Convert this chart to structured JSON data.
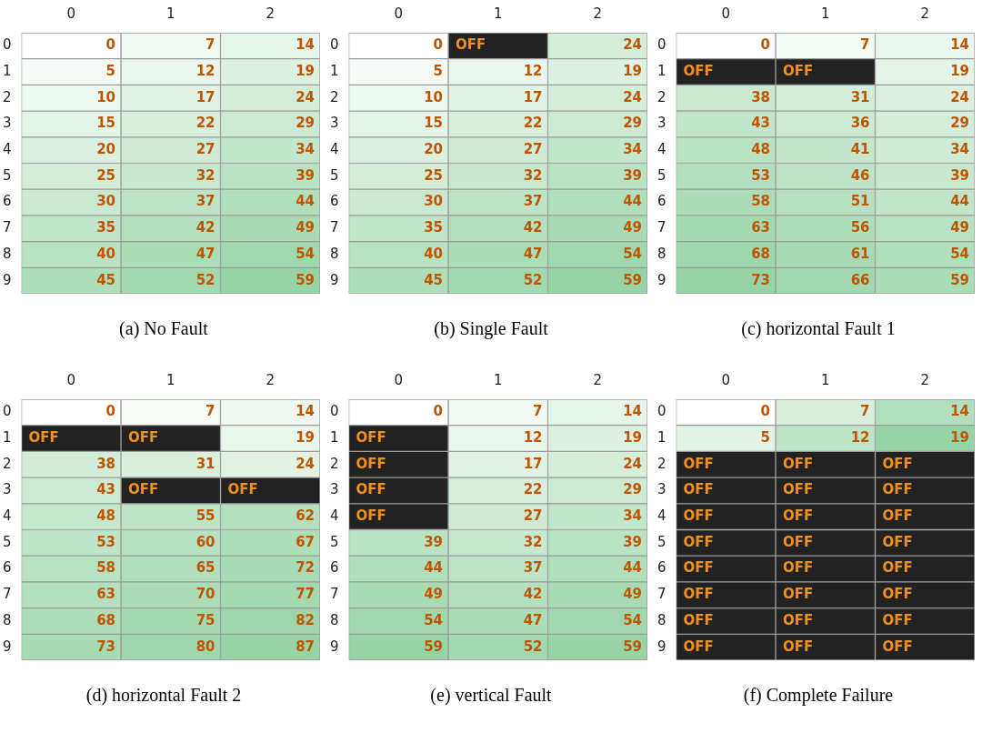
{
  "chart_data": [
    {
      "type": "heatmap",
      "data_labels": true,
      "title": "(a) No Fault",
      "categories": [
        "0",
        "1",
        "2"
      ],
      "y_categories": [
        "0",
        "1",
        "2",
        "3",
        "4",
        "5",
        "6",
        "7",
        "8",
        "9"
      ],
      "cells": [
        [
          0,
          7,
          14
        ],
        [
          5,
          12,
          19
        ],
        [
          10,
          17,
          24
        ],
        [
          15,
          22,
          29
        ],
        [
          20,
          27,
          34
        ],
        [
          25,
          32,
          39
        ],
        [
          30,
          37,
          44
        ],
        [
          35,
          42,
          49
        ],
        [
          40,
          47,
          54
        ],
        [
          45,
          52,
          59
        ]
      ]
    },
    {
      "type": "heatmap",
      "data_labels": true,
      "title": "(b) Single Fault",
      "categories": [
        "0",
        "1",
        "2"
      ],
      "y_categories": [
        "0",
        "1",
        "2",
        "3",
        "4",
        "5",
        "6",
        "7",
        "8",
        "9"
      ],
      "cells": [
        [
          0,
          null,
          24
        ],
        [
          5,
          12,
          19
        ],
        [
          10,
          17,
          24
        ],
        [
          15,
          22,
          29
        ],
        [
          20,
          27,
          34
        ],
        [
          25,
          32,
          39
        ],
        [
          30,
          37,
          44
        ],
        [
          35,
          42,
          49
        ],
        [
          40,
          47,
          54
        ],
        [
          45,
          52,
          59
        ]
      ],
      "cell_labels": [
        [
          "0",
          "OFF",
          "24"
        ],
        [
          "5",
          "12",
          "19"
        ],
        [
          "10",
          "17",
          "24"
        ],
        [
          "15",
          "22",
          "29"
        ],
        [
          "20",
          "27",
          "34"
        ],
        [
          "25",
          "32",
          "39"
        ],
        [
          "30",
          "37",
          "44"
        ],
        [
          "35",
          "42",
          "49"
        ],
        [
          "40",
          "47",
          "54"
        ],
        [
          "45",
          "52",
          "59"
        ]
      ]
    },
    {
      "type": "heatmap",
      "data_labels": true,
      "title": "(c) horizontal Fault 1",
      "categories": [
        "0",
        "1",
        "2"
      ],
      "y_categories": [
        "0",
        "1",
        "2",
        "3",
        "4",
        "5",
        "6",
        "7",
        "8",
        "9"
      ],
      "cells": [
        [
          0,
          7,
          14
        ],
        [
          null,
          null,
          19
        ],
        [
          38,
          31,
          24
        ],
        [
          43,
          36,
          29
        ],
        [
          48,
          41,
          34
        ],
        [
          53,
          46,
          39
        ],
        [
          58,
          51,
          44
        ],
        [
          63,
          56,
          49
        ],
        [
          68,
          61,
          54
        ],
        [
          73,
          66,
          59
        ]
      ],
      "cell_labels": [
        [
          "0",
          "7",
          "14"
        ],
        [
          "OFF",
          "OFF",
          "19"
        ],
        [
          "38",
          "31",
          "24"
        ],
        [
          "43",
          "36",
          "29"
        ],
        [
          "48",
          "41",
          "34"
        ],
        [
          "53",
          "46",
          "39"
        ],
        [
          "58",
          "51",
          "44"
        ],
        [
          "63",
          "56",
          "49"
        ],
        [
          "68",
          "61",
          "54"
        ],
        [
          "73",
          "66",
          "59"
        ]
      ]
    },
    {
      "type": "heatmap",
      "data_labels": true,
      "title": "(d) horizontal Fault 2",
      "categories": [
        "0",
        "1",
        "2"
      ],
      "y_categories": [
        "0",
        "1",
        "2",
        "3",
        "4",
        "5",
        "6",
        "7",
        "8",
        "9"
      ],
      "cells": [
        [
          0,
          7,
          14
        ],
        [
          null,
          null,
          19
        ],
        [
          38,
          31,
          24
        ],
        [
          43,
          null,
          null
        ],
        [
          48,
          55,
          62
        ],
        [
          53,
          60,
          67
        ],
        [
          58,
          65,
          72
        ],
        [
          63,
          70,
          77
        ],
        [
          68,
          75,
          82
        ],
        [
          73,
          80,
          87
        ]
      ],
      "cell_labels": [
        [
          "0",
          "7",
          "14"
        ],
        [
          "OFF",
          "OFF",
          "19"
        ],
        [
          "38",
          "31",
          "24"
        ],
        [
          "43",
          "OFF",
          "OFF"
        ],
        [
          "48",
          "55",
          "62"
        ],
        [
          "53",
          "60",
          "67"
        ],
        [
          "58",
          "65",
          "72"
        ],
        [
          "63",
          "70",
          "77"
        ],
        [
          "68",
          "75",
          "82"
        ],
        [
          "73",
          "80",
          "87"
        ]
      ]
    },
    {
      "type": "heatmap",
      "data_labels": true,
      "title": "(e) vertical Fault",
      "categories": [
        "0",
        "1",
        "2"
      ],
      "y_categories": [
        "0",
        "1",
        "2",
        "3",
        "4",
        "5",
        "6",
        "7",
        "8",
        "9"
      ],
      "cells": [
        [
          0,
          7,
          14
        ],
        [
          null,
          12,
          19
        ],
        [
          null,
          17,
          24
        ],
        [
          null,
          22,
          29
        ],
        [
          null,
          27,
          34
        ],
        [
          39,
          32,
          39
        ],
        [
          44,
          37,
          44
        ],
        [
          49,
          42,
          49
        ],
        [
          54,
          47,
          54
        ],
        [
          59,
          52,
          59
        ]
      ],
      "cell_labels": [
        [
          "0",
          "7",
          "14"
        ],
        [
          "OFF",
          "12",
          "19"
        ],
        [
          "OFF",
          "17",
          "24"
        ],
        [
          "OFF",
          "22",
          "29"
        ],
        [
          "OFF",
          "27",
          "34"
        ],
        [
          "39",
          "32",
          "39"
        ],
        [
          "44",
          "37",
          "44"
        ],
        [
          "49",
          "42",
          "49"
        ],
        [
          "54",
          "47",
          "54"
        ],
        [
          "59",
          "52",
          "59"
        ]
      ]
    },
    {
      "type": "heatmap",
      "data_labels": true,
      "title": "(f) Complete Failure",
      "categories": [
        "0",
        "1",
        "2"
      ],
      "y_categories": [
        "0",
        "1",
        "2",
        "3",
        "4",
        "5",
        "6",
        "7",
        "8",
        "9"
      ],
      "cells": [
        [
          0,
          7,
          14
        ],
        [
          5,
          12,
          19
        ],
        [
          null,
          null,
          null
        ],
        [
          null,
          null,
          null
        ],
        [
          null,
          null,
          null
        ],
        [
          null,
          null,
          null
        ],
        [
          null,
          null,
          null
        ],
        [
          null,
          null,
          null
        ],
        [
          null,
          null,
          null
        ],
        [
          null,
          null,
          null
        ]
      ],
      "cell_labels": [
        [
          "0",
          "7",
          "14"
        ],
        [
          "5",
          "12",
          "19"
        ],
        [
          "OFF",
          "OFF",
          "OFF"
        ],
        [
          "OFF",
          "OFF",
          "OFF"
        ],
        [
          "OFF",
          "OFF",
          "OFF"
        ],
        [
          "OFF",
          "OFF",
          "OFF"
        ],
        [
          "OFF",
          "OFF",
          "OFF"
        ],
        [
          "OFF",
          "OFF",
          "OFF"
        ],
        [
          "OFF",
          "OFF",
          "OFF"
        ],
        [
          "OFF",
          "OFF",
          "OFF"
        ]
      ]
    }
  ]
}
